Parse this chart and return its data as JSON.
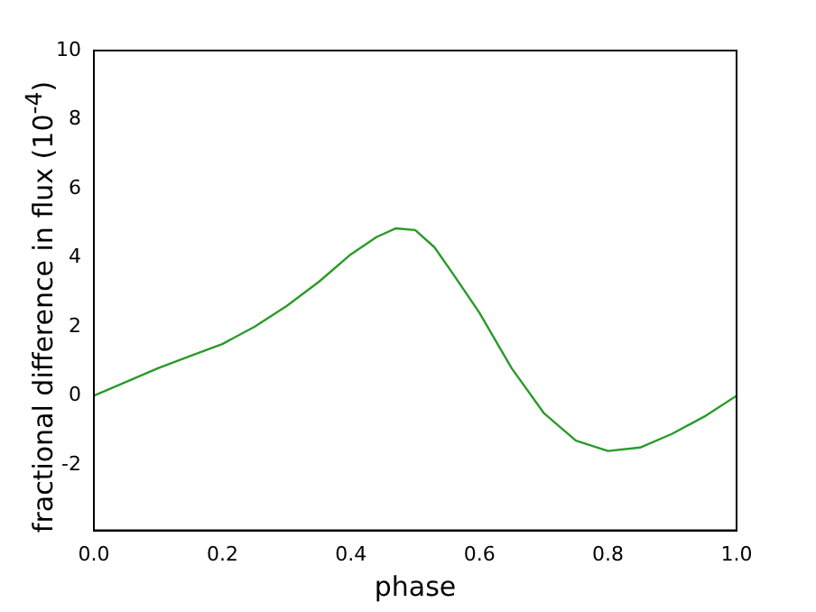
{
  "chart_data": {
    "type": "line",
    "xlabel": "phase",
    "ylabel": "fractional difference in flux (10$^{-4}$)",
    "series": [
      {
        "color": "#2a9a2a",
        "x": [
          0,
          0.05,
          0.1,
          0.15,
          0.2,
          0.25,
          0.3,
          0.35,
          0.4,
          0.44,
          0.47,
          0.5,
          0.53,
          0.56,
          0.6,
          0.65,
          0.7,
          0.75,
          0.8,
          0.85,
          0.9,
          0.95,
          1.0
        ],
        "values": [
          0,
          0.4,
          0.8,
          1.15,
          1.5,
          2.0,
          2.6,
          3.3,
          4.1,
          4.6,
          4.85,
          4.8,
          4.3,
          3.5,
          2.4,
          0.8,
          -0.5,
          -1.3,
          -1.6,
          -1.5,
          -1.1,
          -0.6,
          0
        ]
      }
    ],
    "xlim": [
      0,
      1
    ],
    "xticks": [
      {
        "value": 0,
        "label": "0.0"
      },
      0.2,
      0.4,
      0.6,
      0.8,
      {
        "value": 1,
        "label": "1.0"
      }
    ],
    "ylim": [
      -3.9,
      10
    ],
    "yticks": [
      -2,
      0,
      2,
      4,
      6,
      8,
      10
    ],
    "grid": false,
    "legend": false,
    "marker": "none",
    "line_style": "solid"
  }
}
